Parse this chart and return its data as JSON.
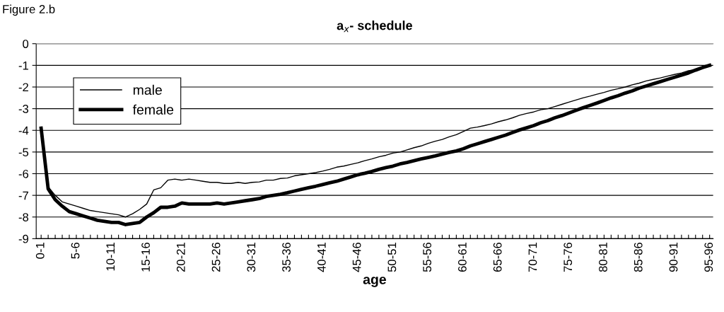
{
  "chart_data": {
    "type": "line",
    "title": "a$_{x}$- schedule",
    "xlabel": "age",
    "annotations": [
      "Figure 2.b"
    ],
    "categories": [
      "0-1",
      null,
      null,
      null,
      null,
      "5-6",
      null,
      null,
      null,
      null,
      "10-11",
      null,
      null,
      null,
      null,
      "15-16",
      null,
      null,
      null,
      null,
      "20-21",
      null,
      null,
      null,
      null,
      "25-26",
      null,
      null,
      null,
      null,
      "30-31",
      null,
      null,
      null,
      null,
      "35-36",
      null,
      null,
      null,
      null,
      "40-41",
      null,
      null,
      null,
      null,
      "45-46",
      null,
      null,
      null,
      null,
      "50-51",
      null,
      null,
      null,
      null,
      "55-56",
      null,
      null,
      null,
      null,
      "60-61",
      null,
      null,
      null,
      null,
      "65-66",
      null,
      null,
      null,
      null,
      "70-71",
      null,
      null,
      null,
      null,
      "75-76",
      null,
      null,
      null,
      null,
      "80-81",
      null,
      null,
      null,
      null,
      "85-86",
      null,
      null,
      null,
      null,
      "90-91",
      null,
      null,
      null,
      null,
      "95-96"
    ],
    "series": [
      {
        "name": "male",
        "color": "#000000",
        "values": [
          -3.9,
          -6.6,
          -7.0,
          -7.3,
          -7.4,
          -7.5,
          -7.6,
          -7.7,
          -7.75,
          -7.8,
          -7.85,
          -7.9,
          -8.0,
          -7.85,
          -7.65,
          -7.4,
          -6.75,
          -6.65,
          -6.3,
          -6.25,
          -6.3,
          -6.25,
          -6.3,
          -6.35,
          -6.4,
          -6.4,
          -6.45,
          -6.45,
          -6.4,
          -6.45,
          -6.4,
          -6.38,
          -6.3,
          -6.3,
          -6.22,
          -6.2,
          -6.1,
          -6.05,
          -6.0,
          -5.95,
          -5.88,
          -5.8,
          -5.7,
          -5.65,
          -5.57,
          -5.5,
          -5.4,
          -5.32,
          -5.22,
          -5.15,
          -5.05,
          -5.0,
          -4.9,
          -4.8,
          -4.72,
          -4.6,
          -4.5,
          -4.42,
          -4.3,
          -4.2,
          -4.05,
          -3.9,
          -3.85,
          -3.78,
          -3.7,
          -3.6,
          -3.52,
          -3.42,
          -3.3,
          -3.22,
          -3.15,
          -3.05,
          -3.0,
          -2.9,
          -2.8,
          -2.7,
          -2.6,
          -2.5,
          -2.42,
          -2.33,
          -2.25,
          -2.15,
          -2.08,
          -2.0,
          -1.9,
          -1.82,
          -1.72,
          -1.65,
          -1.58,
          -1.5,
          -1.42,
          -1.35,
          -1.25,
          -1.2,
          -1.1,
          -1.0
        ]
      },
      {
        "name": "female",
        "color": "#000000",
        "values": [
          -3.9,
          -6.7,
          -7.2,
          -7.5,
          -7.75,
          -7.85,
          -7.95,
          -8.05,
          -8.15,
          -8.2,
          -8.25,
          -8.25,
          -8.35,
          -8.3,
          -8.25,
          -8.0,
          -7.8,
          -7.55,
          -7.55,
          -7.5,
          -7.35,
          -7.4,
          -7.4,
          -7.4,
          -7.4,
          -7.35,
          -7.4,
          -7.35,
          -7.3,
          -7.25,
          -7.2,
          -7.15,
          -7.05,
          -7.0,
          -6.95,
          -6.88,
          -6.8,
          -6.72,
          -6.65,
          -6.58,
          -6.5,
          -6.42,
          -6.35,
          -6.25,
          -6.15,
          -6.05,
          -5.98,
          -5.9,
          -5.8,
          -5.72,
          -5.65,
          -5.55,
          -5.48,
          -5.4,
          -5.32,
          -5.25,
          -5.18,
          -5.1,
          -5.02,
          -4.95,
          -4.85,
          -4.72,
          -4.62,
          -4.52,
          -4.42,
          -4.32,
          -4.22,
          -4.1,
          -3.98,
          -3.88,
          -3.78,
          -3.65,
          -3.55,
          -3.42,
          -3.32,
          -3.2,
          -3.08,
          -2.96,
          -2.85,
          -2.74,
          -2.62,
          -2.5,
          -2.4,
          -2.28,
          -2.18,
          -2.05,
          -1.95,
          -1.85,
          -1.75,
          -1.65,
          -1.55,
          -1.45,
          -1.35,
          -1.22,
          -1.1,
          -1.0
        ]
      }
    ],
    "ylim": [
      -9,
      0
    ],
    "yticks": [
      0,
      -1,
      -2,
      -3,
      -4,
      -5,
      -6,
      -7,
      -8,
      -9
    ],
    "grid": "y",
    "legend": "top left",
    "marker": "none",
    "line_style": "solid"
  }
}
